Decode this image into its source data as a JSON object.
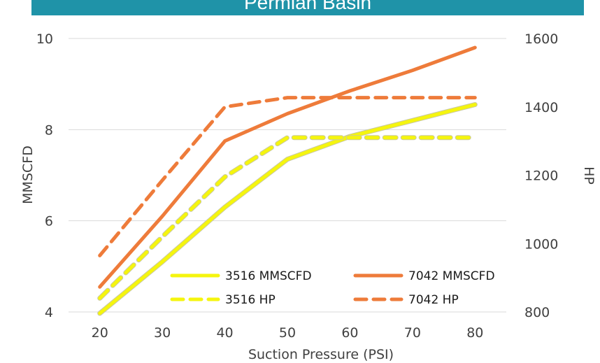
{
  "chart_data": {
    "type": "line",
    "title": "Permian Basin",
    "xlabel": "Suction Pressure (PSI)",
    "ylabel": "MMSCFD",
    "y2label": "HP",
    "x": [
      20,
      30,
      40,
      50,
      60,
      70,
      80
    ],
    "x_ticks": [
      "20",
      "30",
      "40",
      "50",
      "60",
      "70",
      "80"
    ],
    "ylim": [
      4,
      10
    ],
    "y_ticks": [
      "4",
      "6",
      "8",
      "10"
    ],
    "y2lim": [
      800,
      1600
    ],
    "y2_ticks": [
      "800",
      "1000",
      "1200",
      "1400",
      "1600"
    ],
    "grid": true,
    "legend_position": "bottom-right inside plot",
    "series": [
      {
        "name": "3516 MMSCFD",
        "axis": "left",
        "style": "solid",
        "color": "#f5f50e",
        "values": [
          3.9,
          5.1,
          6.3,
          7.35,
          7.85,
          8.2,
          8.55
        ]
      },
      {
        "name": "7042 MMSCFD",
        "axis": "left",
        "style": "solid",
        "color": "#ee7b3a",
        "values": [
          4.55,
          6.1,
          7.75,
          8.35,
          8.85,
          9.3,
          9.8
        ]
      },
      {
        "name": "3516 HP",
        "axis": "right",
        "style": "dashed",
        "color": "#f5f50e",
        "values": [
          840,
          1020,
          1195,
          1310,
          1310,
          1310,
          1310
        ]
      },
      {
        "name": "7042 HP",
        "axis": "right",
        "style": "dashed",
        "color": "#ee7b3a",
        "values": [
          965,
          1185,
          1400,
          1427,
          1427,
          1427,
          1427
        ]
      }
    ]
  }
}
